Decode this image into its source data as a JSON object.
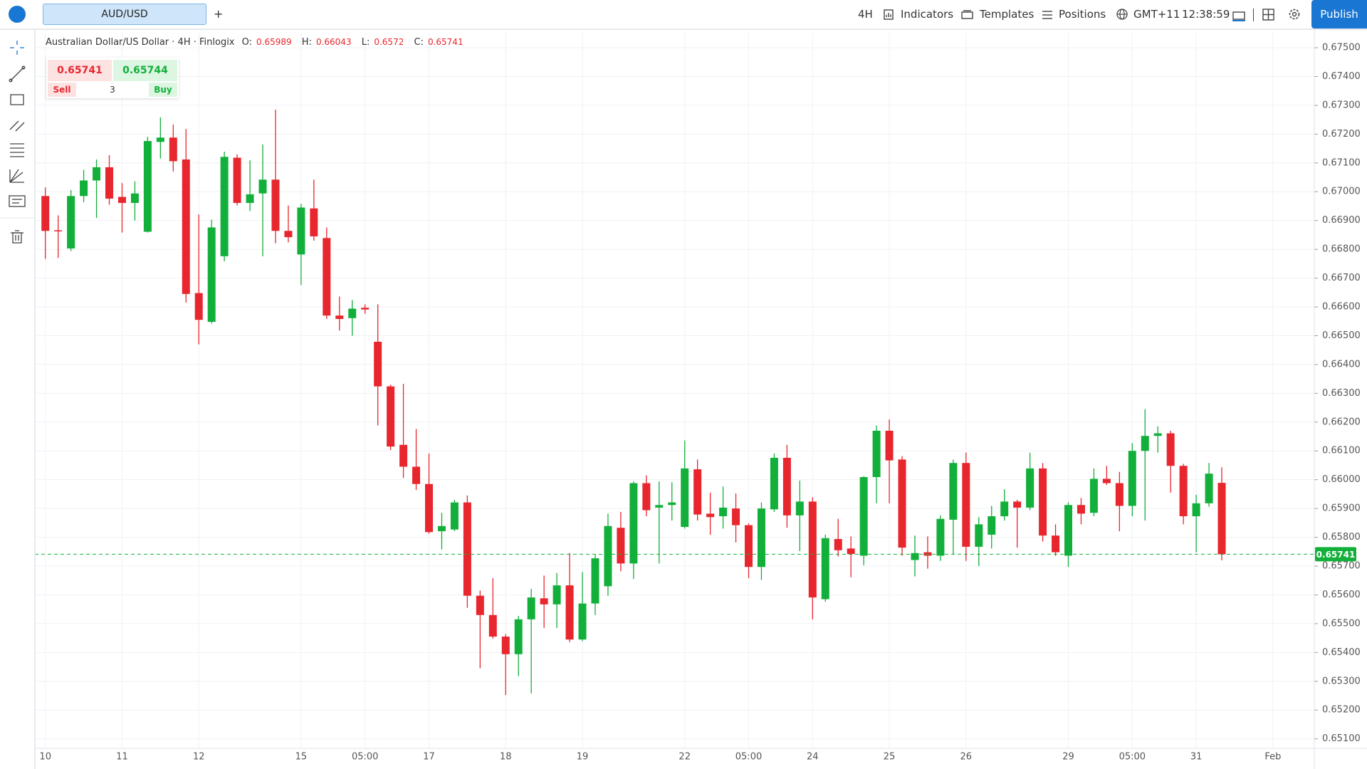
{
  "toolbar": {
    "symbol": "AUD/USD",
    "add": "+",
    "interval": "4H",
    "indicators": "Indicators",
    "templates": "Templates",
    "positions": "Positions",
    "timezone": "GMT+11",
    "time": "12:38:59",
    "publish": "Publish"
  },
  "chart_data": {
    "type": "candlestick",
    "title": "Australian Dollar/US Dollar · 4H · Finlogix",
    "ohlc_legend": [
      {
        "label": "O:",
        "value": 0.65989
      },
      {
        "label": "H:",
        "value": 0.66043
      },
      {
        "label": "L:",
        "value": 0.6572
      },
      {
        "label": "C:",
        "value": 0.65741
      }
    ],
    "trade_panel": {
      "sell_price": 0.65741,
      "buy_price": 0.65744,
      "sell": "Sell",
      "buy": "Buy",
      "quantity": 3
    },
    "up_color": "#12b03a",
    "down_color": "#e8262e",
    "grid": true,
    "last_price": {
      "value": 0.65741,
      "label": "0.65741",
      "color": "#12b03a"
    },
    "categories": [
      "10",
      null,
      null,
      null,
      null,
      null,
      "11",
      null,
      null,
      null,
      null,
      null,
      "12",
      null,
      null,
      null,
      null,
      null,
      null,
      null,
      "15",
      null,
      null,
      null,
      null,
      "05:00",
      null,
      null,
      null,
      null,
      "17",
      null,
      null,
      null,
      null,
      null,
      "18",
      null,
      null,
      null,
      null,
      null,
      "19",
      null,
      null,
      null,
      null,
      null,
      null,
      null,
      "22",
      null,
      null,
      null,
      null,
      "05:00",
      null,
      null,
      null,
      null,
      "24",
      null,
      null,
      null,
      null,
      null,
      "25",
      null,
      null,
      null,
      null,
      null,
      "26",
      null,
      null,
      null,
      null,
      null,
      null,
      null,
      "29",
      null,
      null,
      null,
      null,
      "05:00",
      null,
      null,
      null,
      null,
      "31",
      null,
      null,
      null,
      null,
      null,
      "Feb"
    ],
    "open": [
      0.66985,
      0.66866,
      0.66803,
      0.66985,
      0.67039,
      0.67085,
      0.66982,
      0.66961,
      0.66861,
      0.67173,
      0.67188,
      0.67112,
      0.66648,
      0.66548,
      0.66776,
      0.67118,
      0.66961,
      0.66994,
      0.67042,
      0.66864,
      0.66782,
      0.66942,
      0.66839,
      0.6657,
      0.66561,
      0.66597,
      0.66479,
      0.66324,
      0.66121,
      0.66045,
      0.65985,
      0.65821,
      0.65827,
      0.65921,
      0.65597,
      0.6553,
      0.65455,
      0.65394,
      0.65515,
      0.65588,
      0.65567,
      0.65633,
      0.65445,
      0.6557,
      0.6563,
      0.65833,
      0.65709,
      0.65988,
      0.65903,
      0.65912,
      0.65836,
      0.66036,
      0.65882,
      0.65873,
      0.659,
      0.65842,
      0.65697,
      0.65897,
      0.66076,
      0.65876,
      0.65924,
      0.65585,
      0.65794,
      0.65761,
      0.65736,
      0.66009,
      0.6617,
      0.6607,
      0.65721,
      0.65748,
      0.65736,
      0.65861,
      0.66058,
      0.65767,
      0.65809,
      0.65873,
      0.65924,
      0.65903,
      0.66039,
      0.65806,
      0.65736,
      0.65912,
      0.65885,
      0.66003,
      0.65988,
      0.65909,
      0.661,
      0.66152,
      0.66161,
      0.66048,
      0.65873,
      0.65918,
      0.65989,
      null,
      null,
      null,
      null
    ],
    "high": [
      0.67015,
      0.66918,
      0.67006,
      0.67076,
      0.67112,
      0.67127,
      0.6703,
      0.67036,
      0.67191,
      0.67258,
      0.67233,
      0.67218,
      0.66921,
      0.66903,
      0.67139,
      0.6713,
      0.67109,
      0.67164,
      0.67285,
      0.66952,
      0.66958,
      0.67042,
      0.66876,
      0.66636,
      0.66624,
      0.66609,
      0.66609,
      0.6633,
      0.66333,
      0.66176,
      0.66091,
      0.65885,
      0.6593,
      0.65945,
      0.65615,
      0.65658,
      0.65464,
      0.65527,
      0.65621,
      0.65667,
      0.65676,
      0.65745,
      0.65679,
      0.65739,
      0.65882,
      0.65888,
      0.65994,
      0.66015,
      0.65994,
      0.65991,
      0.66136,
      0.6607,
      0.65955,
      0.65976,
      0.65952,
      0.65848,
      0.65921,
      0.66091,
      0.66121,
      0.65997,
      0.65939,
      0.65809,
      0.65864,
      0.65803,
      0.66012,
      0.66188,
      0.66209,
      0.66082,
      0.65806,
      0.65803,
      0.65876,
      0.6607,
      0.66094,
      0.6587,
      0.65909,
      0.65967,
      0.6593,
      0.66094,
      0.66058,
      0.65845,
      0.65921,
      0.65936,
      0.66039,
      0.66048,
      0.66027,
      0.66127,
      0.66245,
      0.66185,
      0.6617,
      0.66055,
      0.65948,
      0.66058,
      0.66043,
      null,
      null,
      null,
      null
    ],
    "low": [
      0.66767,
      0.6677,
      0.66794,
      0.66964,
      0.66909,
      0.66955,
      0.66858,
      0.669,
      0.66858,
      0.67115,
      0.6707,
      0.66615,
      0.6647,
      0.66542,
      0.66758,
      0.66952,
      0.66933,
      0.66776,
      0.66821,
      0.66824,
      0.66676,
      0.6683,
      0.66558,
      0.66518,
      0.665,
      0.66576,
      0.66188,
      0.66103,
      0.66006,
      0.65964,
      0.65812,
      0.65758,
      0.65821,
      0.65555,
      0.65345,
      0.65448,
      0.65252,
      0.65318,
      0.65258,
      0.65485,
      0.65485,
      0.65436,
      0.65439,
      0.6553,
      0.65597,
      0.65682,
      0.65655,
      0.65873,
      0.65709,
      0.65858,
      0.6583,
      0.65858,
      0.65809,
      0.6583,
      0.65782,
      0.65658,
      0.65652,
      0.65888,
      0.65833,
      0.65752,
      0.65515,
      0.65576,
      0.65733,
      0.65661,
      0.65703,
      0.65918,
      0.65918,
      0.65736,
      0.65664,
      0.65691,
      0.65718,
      0.65742,
      0.65718,
      0.657,
      0.65761,
      0.65858,
      0.65764,
      0.65894,
      0.65785,
      0.65736,
      0.65697,
      0.65845,
      0.65873,
      0.65982,
      0.65821,
      0.65873,
      0.65858,
      0.66094,
      0.65955,
      0.65845,
      0.65748,
      0.65906,
      0.6572,
      null,
      null,
      null,
      null
    ],
    "close": [
      0.66864,
      0.66864,
      0.66985,
      0.67039,
      0.67085,
      0.66976,
      0.66961,
      0.66994,
      0.67176,
      0.67188,
      0.67106,
      0.66645,
      0.66555,
      0.66876,
      0.67121,
      0.66961,
      0.66991,
      0.67042,
      0.66864,
      0.66842,
      0.66945,
      0.66845,
      0.6657,
      0.66558,
      0.66594,
      0.66591,
      0.66324,
      0.66115,
      0.66045,
      0.65985,
      0.65818,
      0.65839,
      0.65921,
      0.65597,
      0.6553,
      0.65455,
      0.65394,
      0.65515,
      0.65591,
      0.65567,
      0.65633,
      0.65445,
      0.6557,
      0.65727,
      0.65839,
      0.65709,
      0.65988,
      0.65894,
      0.65912,
      0.65921,
      0.66039,
      0.65879,
      0.6587,
      0.65903,
      0.65842,
      0.65697,
      0.659,
      0.66076,
      0.65876,
      0.65924,
      0.65591,
      0.65797,
      0.65755,
      0.65742,
      0.66009,
      0.6617,
      0.66067,
      0.65764,
      0.65745,
      0.65736,
      0.65864,
      0.66058,
      0.65767,
      0.65845,
      0.65873,
      0.65924,
      0.65903,
      0.66039,
      0.65806,
      0.65748,
      0.65912,
      0.65882,
      0.66003,
      0.65988,
      0.65909,
      0.661,
      0.66152,
      0.66161,
      0.66048,
      0.65873,
      0.65918,
      0.66021,
      0.65741,
      null,
      null,
      null,
      null
    ],
    "ylim": [
      0.65067,
      0.67552
    ],
    "yticks": [
      {
        "value": 0.651,
        "label": "0.65100"
      },
      {
        "value": 0.652,
        "label": "0.65200"
      },
      {
        "value": 0.653,
        "label": "0.65300"
      },
      {
        "value": 0.654,
        "label": "0.65400"
      },
      {
        "value": 0.655,
        "label": "0.65500"
      },
      {
        "value": 0.656,
        "label": "0.65600"
      },
      {
        "value": 0.657,
        "label": "0.65700"
      },
      {
        "value": 0.658,
        "label": "0.65800"
      },
      {
        "value": 0.659,
        "label": "0.65900"
      },
      {
        "value": 0.66,
        "label": "0.66000"
      },
      {
        "value": 0.661,
        "label": "0.66100"
      },
      {
        "value": 0.662,
        "label": "0.66200"
      },
      {
        "value": 0.663,
        "label": "0.66300"
      },
      {
        "value": 0.664,
        "label": "0.66400"
      },
      {
        "value": 0.665,
        "label": "0.66500"
      },
      {
        "value": 0.666,
        "label": "0.66600"
      },
      {
        "value": 0.667,
        "label": "0.66700"
      },
      {
        "value": 0.668,
        "label": "0.66800"
      },
      {
        "value": 0.669,
        "label": "0.66900"
      },
      {
        "value": 0.67,
        "label": "0.67000"
      },
      {
        "value": 0.671,
        "label": "0.67100"
      },
      {
        "value": 0.672,
        "label": "0.67200"
      },
      {
        "value": 0.673,
        "label": "0.67300"
      },
      {
        "value": 0.674,
        "label": "0.67400"
      },
      {
        "value": 0.675,
        "label": "0.67500"
      }
    ]
  }
}
